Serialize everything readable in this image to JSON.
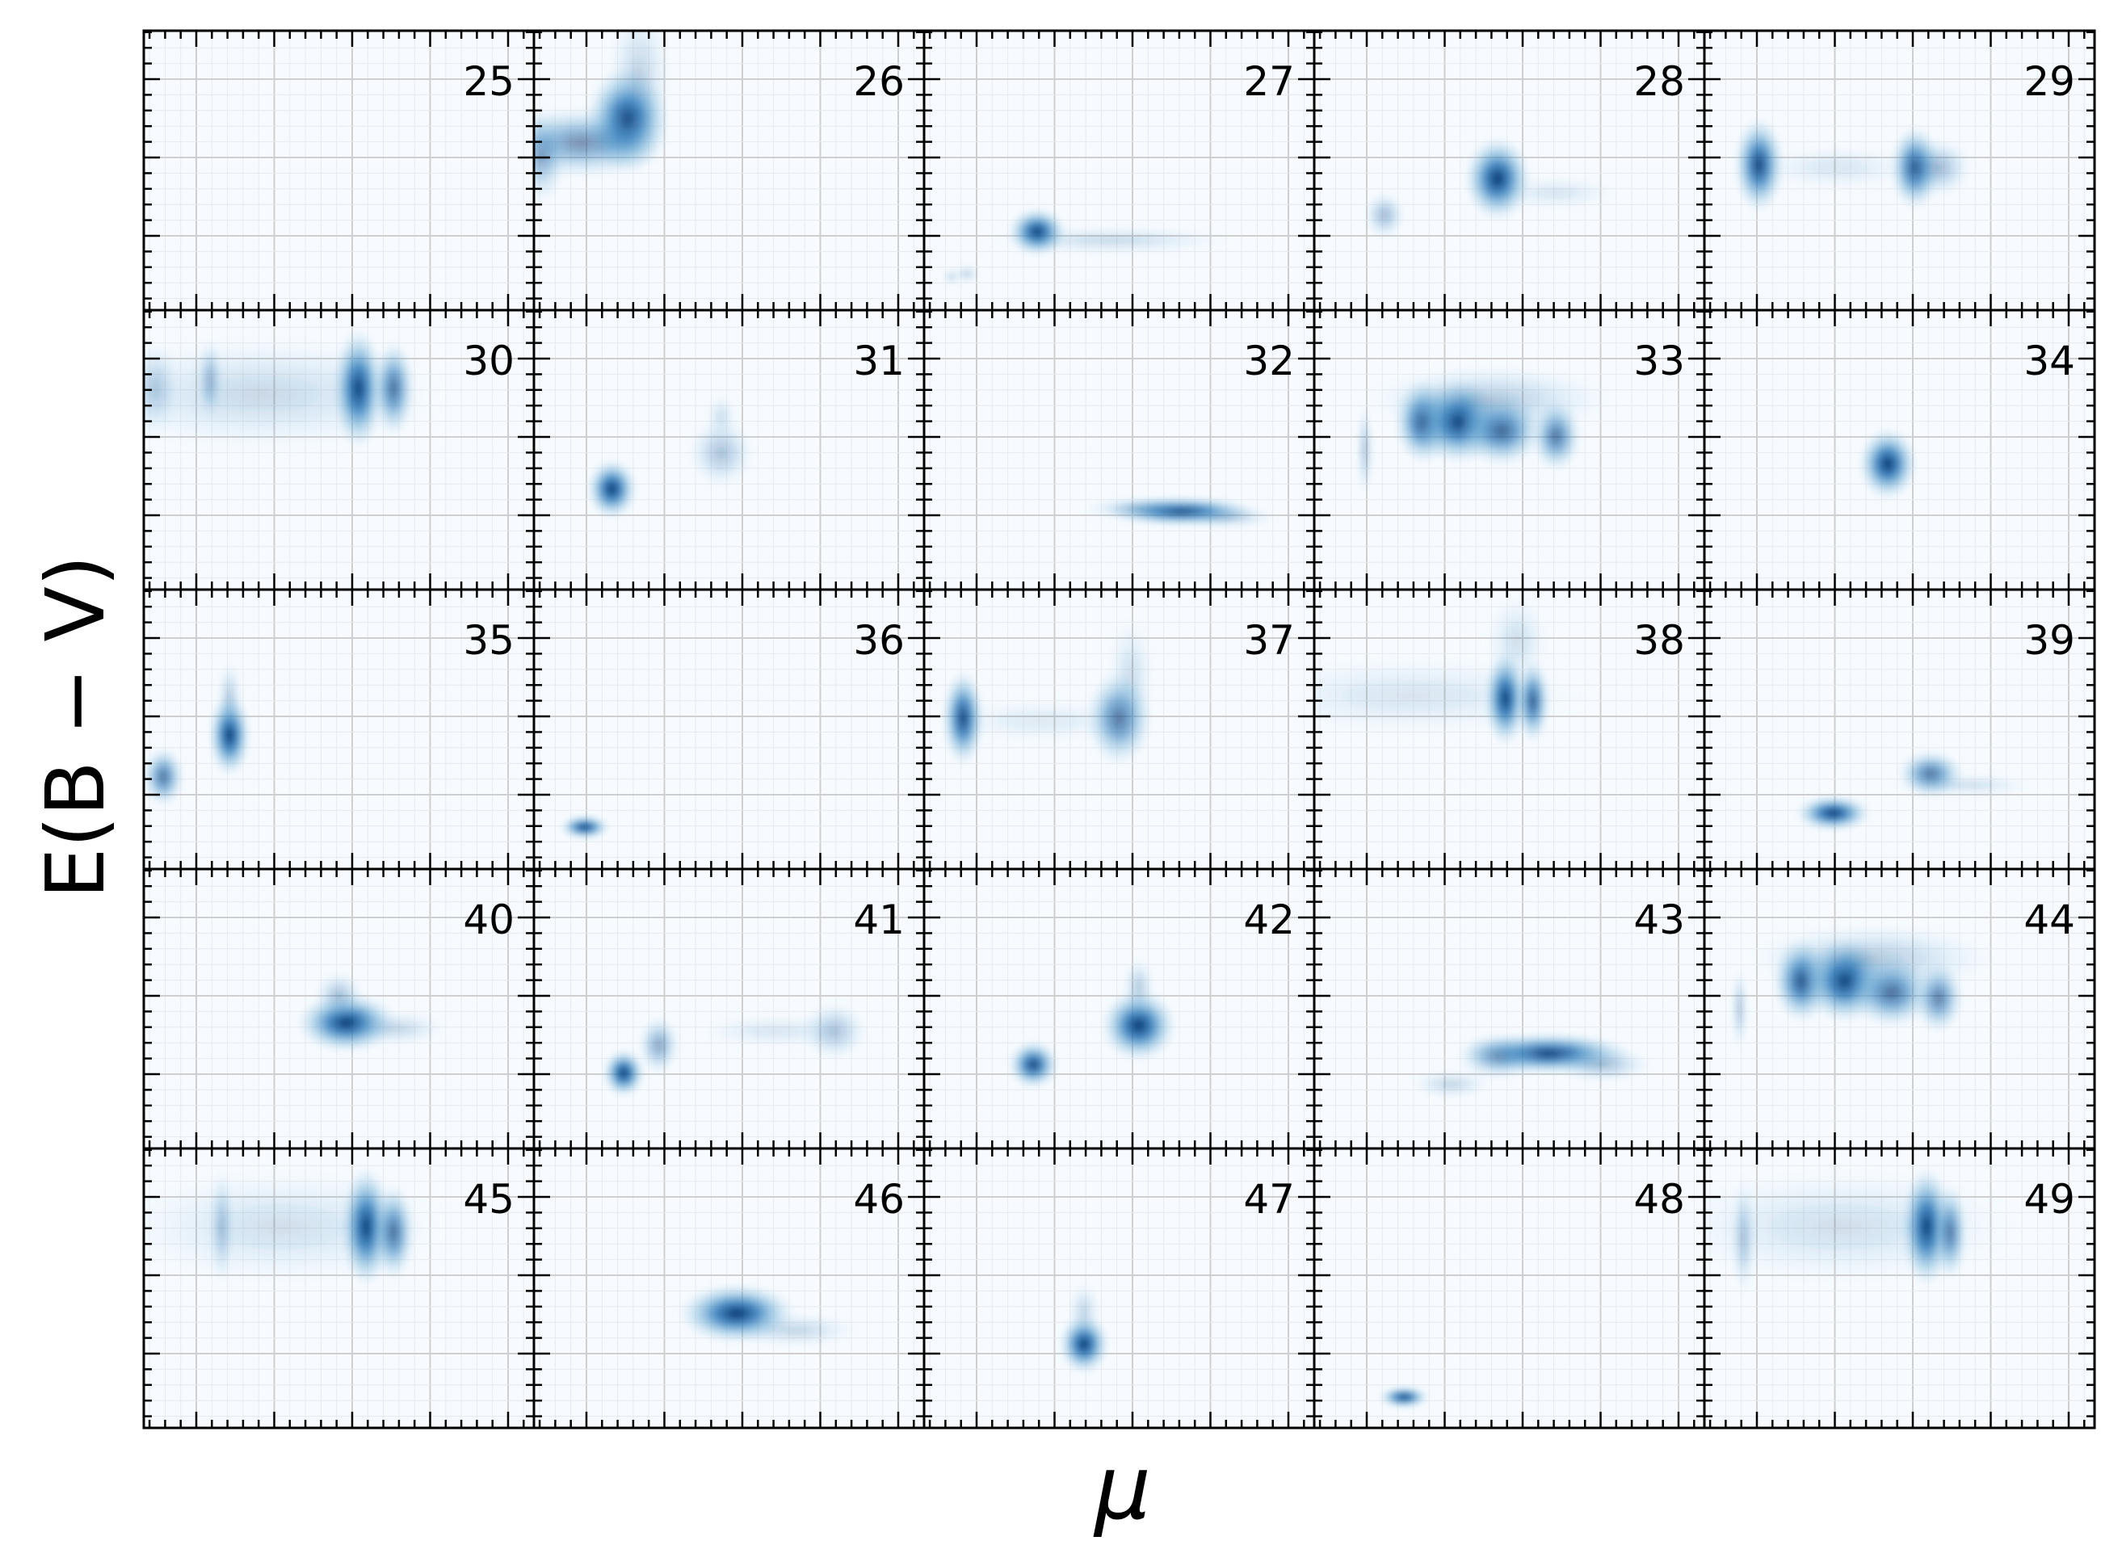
{
  "figure": {
    "xlabel": "μ",
    "ylabel": "E(B − V)"
  },
  "colors": {
    "low": "#f7fbff",
    "high": "#08306b",
    "grid": "#cfcfcf",
    "axis": "#000000"
  },
  "chart_data": {
    "type": "heatmap",
    "colormap": "Blues",
    "layout": {
      "rows": 5,
      "cols": 5
    },
    "xlabel": "μ",
    "ylabel": "E(B − V)",
    "x_tick_labels_shown": false,
    "y_tick_labels_shown": false,
    "grid": true,
    "panels": [
      {
        "label": "25",
        "blobs": []
      },
      {
        "label": "26",
        "blobs": [
          {
            "x": 0.24,
            "y": 0.68,
            "sx": 0.05,
            "sy": 0.09,
            "a": 1.0
          },
          {
            "x": 0.12,
            "y": 0.6,
            "sx": 0.1,
            "sy": 0.06,
            "a": 0.55
          },
          {
            "x": 0.02,
            "y": 0.55,
            "sx": 0.03,
            "sy": 0.08,
            "a": 0.4
          },
          {
            "x": 0.27,
            "y": 0.85,
            "sx": 0.04,
            "sy": 0.12,
            "a": 0.2
          }
        ]
      },
      {
        "label": "27",
        "blobs": [
          {
            "x": 0.29,
            "y": 0.28,
            "sx": 0.035,
            "sy": 0.04,
            "a": 1.0
          },
          {
            "x": 0.48,
            "y": 0.25,
            "sx": 0.15,
            "sy": 0.025,
            "a": 0.18
          },
          {
            "x": 0.11,
            "y": 0.13,
            "sx": 0.015,
            "sy": 0.015,
            "a": 0.25
          },
          {
            "x": 0.07,
            "y": 0.12,
            "sx": 0.012,
            "sy": 0.015,
            "a": 0.2
          }
        ]
      },
      {
        "label": "28",
        "blobs": [
          {
            "x": 0.47,
            "y": 0.47,
            "sx": 0.04,
            "sy": 0.07,
            "a": 1.0
          },
          {
            "x": 0.18,
            "y": 0.34,
            "sx": 0.025,
            "sy": 0.04,
            "a": 0.35
          },
          {
            "x": 0.62,
            "y": 0.42,
            "sx": 0.08,
            "sy": 0.03,
            "a": 0.12
          }
        ]
      },
      {
        "label": "29",
        "blobs": [
          {
            "x": 0.14,
            "y": 0.52,
            "sx": 0.03,
            "sy": 0.08,
            "a": 0.95
          },
          {
            "x": 0.54,
            "y": 0.51,
            "sx": 0.03,
            "sy": 0.07,
            "a": 0.9
          },
          {
            "x": 0.34,
            "y": 0.51,
            "sx": 0.1,
            "sy": 0.04,
            "a": 0.12
          },
          {
            "x": 0.6,
            "y": 0.51,
            "sx": 0.04,
            "sy": 0.05,
            "a": 0.35
          }
        ]
      },
      {
        "label": "30",
        "blobs": [
          {
            "x": 0.55,
            "y": 0.72,
            "sx": 0.03,
            "sy": 0.1,
            "a": 1.0
          },
          {
            "x": 0.64,
            "y": 0.72,
            "sx": 0.025,
            "sy": 0.08,
            "a": 0.75
          },
          {
            "x": 0.3,
            "y": 0.7,
            "sx": 0.22,
            "sy": 0.1,
            "a": 0.18
          },
          {
            "x": 0.17,
            "y": 0.75,
            "sx": 0.015,
            "sy": 0.07,
            "a": 0.35
          },
          {
            "x": 0.03,
            "y": 0.72,
            "sx": 0.03,
            "sy": 0.08,
            "a": 0.25
          }
        ]
      },
      {
        "label": "31",
        "blobs": [
          {
            "x": 0.2,
            "y": 0.36,
            "sx": 0.03,
            "sy": 0.05,
            "a": 1.0
          },
          {
            "x": 0.48,
            "y": 0.49,
            "sx": 0.04,
            "sy": 0.06,
            "a": 0.3
          },
          {
            "x": 0.48,
            "y": 0.62,
            "sx": 0.02,
            "sy": 0.04,
            "a": 0.15
          }
        ]
      },
      {
        "label": "32",
        "blobs": [
          {
            "x": 0.66,
            "y": 0.28,
            "sx": 0.09,
            "sy": 0.025,
            "a": 0.95
          },
          {
            "x": 0.55,
            "y": 0.29,
            "sx": 0.07,
            "sy": 0.02,
            "a": 0.25
          },
          {
            "x": 0.78,
            "y": 0.26,
            "sx": 0.06,
            "sy": 0.02,
            "a": 0.25
          }
        ]
      },
      {
        "label": "33",
        "blobs": [
          {
            "x": 0.28,
            "y": 0.6,
            "sx": 0.035,
            "sy": 0.07,
            "a": 0.9
          },
          {
            "x": 0.37,
            "y": 0.6,
            "sx": 0.05,
            "sy": 0.07,
            "a": 1.0
          },
          {
            "x": 0.48,
            "y": 0.57,
            "sx": 0.05,
            "sy": 0.06,
            "a": 0.8
          },
          {
            "x": 0.62,
            "y": 0.55,
            "sx": 0.03,
            "sy": 0.06,
            "a": 0.7
          },
          {
            "x": 0.45,
            "y": 0.68,
            "sx": 0.15,
            "sy": 0.06,
            "a": 0.25
          },
          {
            "x": 0.13,
            "y": 0.5,
            "sx": 0.01,
            "sy": 0.08,
            "a": 0.3
          }
        ]
      },
      {
        "label": "34",
        "blobs": [
          {
            "x": 0.47,
            "y": 0.45,
            "sx": 0.035,
            "sy": 0.06,
            "a": 1.0
          }
        ]
      },
      {
        "label": "35",
        "blobs": [
          {
            "x": 0.22,
            "y": 0.48,
            "sx": 0.025,
            "sy": 0.07,
            "a": 1.0
          },
          {
            "x": 0.05,
            "y": 0.33,
            "sx": 0.025,
            "sy": 0.05,
            "a": 0.7
          },
          {
            "x": 0.22,
            "y": 0.62,
            "sx": 0.015,
            "sy": 0.06,
            "a": 0.25
          }
        ]
      },
      {
        "label": "36",
        "blobs": [
          {
            "x": 0.13,
            "y": 0.15,
            "sx": 0.03,
            "sy": 0.02,
            "a": 1.0
          }
        ]
      },
      {
        "label": "37",
        "blobs": [
          {
            "x": 0.1,
            "y": 0.54,
            "sx": 0.025,
            "sy": 0.08,
            "a": 0.95
          },
          {
            "x": 0.5,
            "y": 0.54,
            "sx": 0.04,
            "sy": 0.08,
            "a": 0.7
          },
          {
            "x": 0.53,
            "y": 0.7,
            "sx": 0.03,
            "sy": 0.1,
            "a": 0.15
          },
          {
            "x": 0.3,
            "y": 0.53,
            "sx": 0.12,
            "sy": 0.04,
            "a": 0.1
          }
        ]
      },
      {
        "label": "38",
        "blobs": [
          {
            "x": 0.49,
            "y": 0.61,
            "sx": 0.025,
            "sy": 0.08,
            "a": 1.0
          },
          {
            "x": 0.56,
            "y": 0.6,
            "sx": 0.02,
            "sy": 0.07,
            "a": 0.85
          },
          {
            "x": 0.25,
            "y": 0.62,
            "sx": 0.22,
            "sy": 0.07,
            "a": 0.12
          },
          {
            "x": 0.52,
            "y": 0.82,
            "sx": 0.04,
            "sy": 0.08,
            "a": 0.15
          }
        ]
      },
      {
        "label": "39",
        "blobs": [
          {
            "x": 0.33,
            "y": 0.2,
            "sx": 0.045,
            "sy": 0.03,
            "a": 1.0
          },
          {
            "x": 0.58,
            "y": 0.34,
            "sx": 0.04,
            "sy": 0.04,
            "a": 0.7
          },
          {
            "x": 0.68,
            "y": 0.3,
            "sx": 0.08,
            "sy": 0.02,
            "a": 0.15
          }
        ]
      },
      {
        "label": "40",
        "blobs": [
          {
            "x": 0.52,
            "y": 0.45,
            "sx": 0.06,
            "sy": 0.05,
            "a": 1.0
          },
          {
            "x": 0.65,
            "y": 0.43,
            "sx": 0.06,
            "sy": 0.03,
            "a": 0.2
          },
          {
            "x": 0.5,
            "y": 0.55,
            "sx": 0.03,
            "sy": 0.04,
            "a": 0.3
          }
        ]
      },
      {
        "label": "41",
        "blobs": [
          {
            "x": 0.23,
            "y": 0.27,
            "sx": 0.025,
            "sy": 0.04,
            "a": 1.0
          },
          {
            "x": 0.32,
            "y": 0.37,
            "sx": 0.025,
            "sy": 0.05,
            "a": 0.45
          },
          {
            "x": 0.77,
            "y": 0.42,
            "sx": 0.04,
            "sy": 0.05,
            "a": 0.3
          },
          {
            "x": 0.62,
            "y": 0.42,
            "sx": 0.1,
            "sy": 0.03,
            "a": 0.12
          }
        ]
      },
      {
        "label": "42",
        "blobs": [
          {
            "x": 0.55,
            "y": 0.44,
            "sx": 0.045,
            "sy": 0.06,
            "a": 1.0
          },
          {
            "x": 0.28,
            "y": 0.3,
            "sx": 0.03,
            "sy": 0.04,
            "a": 0.95
          },
          {
            "x": 0.55,
            "y": 0.58,
            "sx": 0.02,
            "sy": 0.05,
            "a": 0.25
          }
        ]
      },
      {
        "label": "43",
        "blobs": [
          {
            "x": 0.6,
            "y": 0.34,
            "sx": 0.1,
            "sy": 0.035,
            "a": 0.95
          },
          {
            "x": 0.47,
            "y": 0.33,
            "sx": 0.05,
            "sy": 0.04,
            "a": 0.45
          },
          {
            "x": 0.74,
            "y": 0.3,
            "sx": 0.06,
            "sy": 0.03,
            "a": 0.3
          },
          {
            "x": 0.35,
            "y": 0.23,
            "sx": 0.05,
            "sy": 0.025,
            "a": 0.2
          }
        ]
      },
      {
        "label": "44",
        "blobs": [
          {
            "x": 0.25,
            "y": 0.6,
            "sx": 0.035,
            "sy": 0.07,
            "a": 0.9
          },
          {
            "x": 0.36,
            "y": 0.6,
            "sx": 0.05,
            "sy": 0.07,
            "a": 1.0
          },
          {
            "x": 0.48,
            "y": 0.56,
            "sx": 0.05,
            "sy": 0.06,
            "a": 0.75
          },
          {
            "x": 0.6,
            "y": 0.54,
            "sx": 0.03,
            "sy": 0.06,
            "a": 0.65
          },
          {
            "x": 0.43,
            "y": 0.68,
            "sx": 0.15,
            "sy": 0.06,
            "a": 0.25
          },
          {
            "x": 0.09,
            "y": 0.5,
            "sx": 0.01,
            "sy": 0.07,
            "a": 0.3
          }
        ]
      },
      {
        "label": "45",
        "blobs": [
          {
            "x": 0.57,
            "y": 0.72,
            "sx": 0.03,
            "sy": 0.1,
            "a": 1.0
          },
          {
            "x": 0.64,
            "y": 0.7,
            "sx": 0.025,
            "sy": 0.08,
            "a": 0.75
          },
          {
            "x": 0.35,
            "y": 0.72,
            "sx": 0.2,
            "sy": 0.1,
            "a": 0.15
          },
          {
            "x": 0.2,
            "y": 0.72,
            "sx": 0.015,
            "sy": 0.1,
            "a": 0.3
          }
        ]
      },
      {
        "label": "46",
        "blobs": [
          {
            "x": 0.52,
            "y": 0.41,
            "sx": 0.07,
            "sy": 0.05,
            "a": 1.0
          },
          {
            "x": 0.67,
            "y": 0.35,
            "sx": 0.08,
            "sy": 0.03,
            "a": 0.2
          }
        ]
      },
      {
        "label": "47",
        "blobs": [
          {
            "x": 0.41,
            "y": 0.3,
            "sx": 0.03,
            "sy": 0.05,
            "a": 1.0
          },
          {
            "x": 0.41,
            "y": 0.42,
            "sx": 0.02,
            "sy": 0.05,
            "a": 0.2
          }
        ]
      },
      {
        "label": "48",
        "blobs": [
          {
            "x": 0.23,
            "y": 0.11,
            "sx": 0.03,
            "sy": 0.018,
            "a": 1.0
          }
        ]
      },
      {
        "label": "49",
        "blobs": [
          {
            "x": 0.57,
            "y": 0.72,
            "sx": 0.03,
            "sy": 0.1,
            "a": 1.0
          },
          {
            "x": 0.63,
            "y": 0.7,
            "sx": 0.02,
            "sy": 0.08,
            "a": 0.7
          },
          {
            "x": 0.35,
            "y": 0.72,
            "sx": 0.22,
            "sy": 0.1,
            "a": 0.15
          },
          {
            "x": 0.1,
            "y": 0.68,
            "sx": 0.015,
            "sy": 0.1,
            "a": 0.3
          }
        ]
      }
    ]
  }
}
